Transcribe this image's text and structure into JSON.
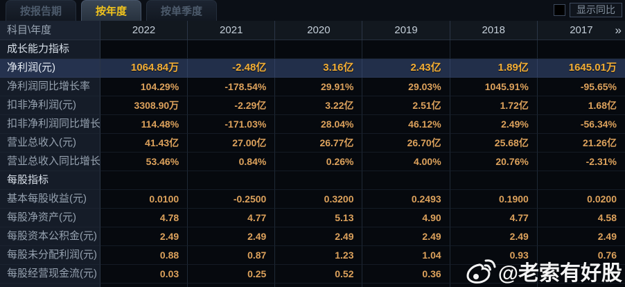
{
  "tabs": [
    {
      "label": "按报告期",
      "active": false
    },
    {
      "label": "按年度",
      "active": true
    },
    {
      "label": "按单季度",
      "active": false
    }
  ],
  "show_yoy": {
    "label": "显示同比",
    "checked": false
  },
  "header": {
    "corner": "科目\\年度",
    "years": [
      "2022",
      "2021",
      "2020",
      "2019",
      "2018",
      "2017"
    ],
    "more": "»"
  },
  "table": {
    "rows": [
      {
        "type": "section",
        "highlighted": false,
        "label": "成长能力指标",
        "values": [
          "",
          "",
          "",
          "",
          "",
          ""
        ]
      },
      {
        "type": "data",
        "highlighted": true,
        "label": "净利润(元)",
        "values": [
          "1064.84万",
          "-2.48亿",
          "3.16亿",
          "2.43亿",
          "1.89亿",
          "1645.01万"
        ]
      },
      {
        "type": "data",
        "highlighted": false,
        "label": "净利润同比增长率",
        "values": [
          "104.29%",
          "-178.54%",
          "29.91%",
          "29.03%",
          "1045.91%",
          "-95.65%"
        ]
      },
      {
        "type": "data",
        "highlighted": false,
        "label": "扣非净利润(元)",
        "values": [
          "3308.90万",
          "-2.29亿",
          "3.22亿",
          "2.51亿",
          "1.72亿",
          "1.68亿"
        ]
      },
      {
        "type": "data",
        "highlighted": false,
        "label": "扣非净利润同比增长率",
        "values": [
          "114.48%",
          "-171.03%",
          "28.04%",
          "46.12%",
          "2.49%",
          "-56.34%"
        ]
      },
      {
        "type": "data",
        "highlighted": false,
        "label": "营业总收入(元)",
        "values": [
          "41.43亿",
          "27.00亿",
          "26.77亿",
          "26.70亿",
          "25.68亿",
          "21.26亿"
        ]
      },
      {
        "type": "data",
        "highlighted": false,
        "label": "营业总收入同比增长率",
        "values": [
          "53.46%",
          "0.84%",
          "0.26%",
          "4.00%",
          "20.76%",
          "-2.31%"
        ]
      },
      {
        "type": "section",
        "highlighted": false,
        "label": "每股指标",
        "values": [
          "",
          "",
          "",
          "",
          "",
          ""
        ]
      },
      {
        "type": "data",
        "highlighted": false,
        "label": "基本每股收益(元)",
        "values": [
          "0.0100",
          "-0.2500",
          "0.3200",
          "0.2493",
          "0.1900",
          "0.0200"
        ]
      },
      {
        "type": "data",
        "highlighted": false,
        "label": "每股净资产(元)",
        "values": [
          "4.78",
          "4.77",
          "5.13",
          "4.90",
          "4.77",
          "4.58"
        ]
      },
      {
        "type": "data",
        "highlighted": false,
        "label": "每股资本公积金(元)",
        "values": [
          "2.49",
          "2.49",
          "2.49",
          "2.49",
          "2.49",
          "2.49"
        ]
      },
      {
        "type": "data",
        "highlighted": false,
        "label": "每股未分配利润(元)",
        "values": [
          "0.88",
          "0.87",
          "1.23",
          "1.04",
          "0.93",
          "0.76"
        ]
      },
      {
        "type": "data",
        "highlighted": false,
        "label": "每股经营现金流(元)",
        "values": [
          "0.03",
          "0.25",
          "0.52",
          "0.36",
          "",
          ""
        ]
      }
    ]
  },
  "watermark": {
    "text": "@老索有好股",
    "icon": "weibo-icon"
  },
  "colors": {
    "background": "#05080d",
    "accent_yellow": "#f2c41d",
    "value_orange": "#dda25c",
    "highlight_row_bg": "#222f4a",
    "highlight_value": "#f3ae35",
    "label_text": "#96a2b0"
  }
}
